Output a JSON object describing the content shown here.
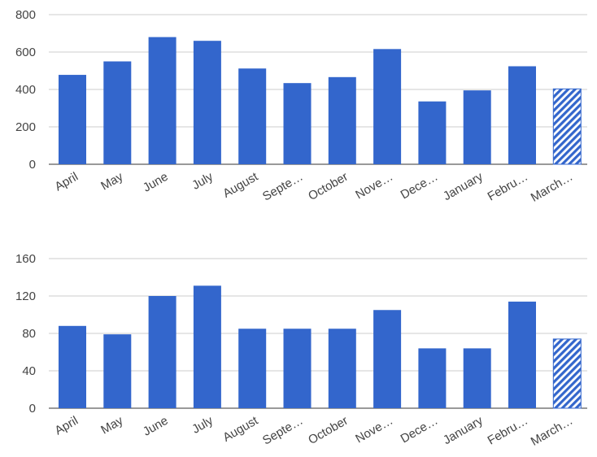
{
  "chart_data": [
    {
      "type": "bar",
      "title": "",
      "xlabel": "",
      "ylabel": "",
      "categories": [
        "April",
        "May",
        "June",
        "July",
        "August",
        "Septe…",
        "October",
        "Nove…",
        "Dece…",
        "January",
        "Febru…",
        "March…"
      ],
      "values": [
        478,
        550,
        680,
        660,
        512,
        434,
        466,
        616,
        336,
        395,
        524,
        403
      ],
      "ylim": [
        0,
        800
      ],
      "yticks": [
        "0",
        "200",
        "400",
        "600",
        "800"
      ],
      "ytick_values": [
        0,
        200,
        400,
        600,
        800
      ],
      "grid": true,
      "bar_color": "#3366cc",
      "hatched_last_bar": true
    },
    {
      "type": "bar",
      "title": "",
      "xlabel": "",
      "ylabel": "",
      "categories": [
        "April",
        "May",
        "June",
        "July",
        "August",
        "Septe…",
        "October",
        "Nove…",
        "Dece…",
        "January",
        "Febru…",
        "March…"
      ],
      "values": [
        88,
        79,
        120,
        131,
        85,
        85,
        85,
        105,
        64,
        64,
        114,
        74
      ],
      "ylim": [
        0,
        160
      ],
      "yticks": [
        "0",
        "40",
        "80",
        "120",
        "160"
      ],
      "ytick_values": [
        0,
        40,
        80,
        120,
        160
      ],
      "grid": true,
      "bar_color": "#3366cc",
      "hatched_last_bar": true
    }
  ]
}
